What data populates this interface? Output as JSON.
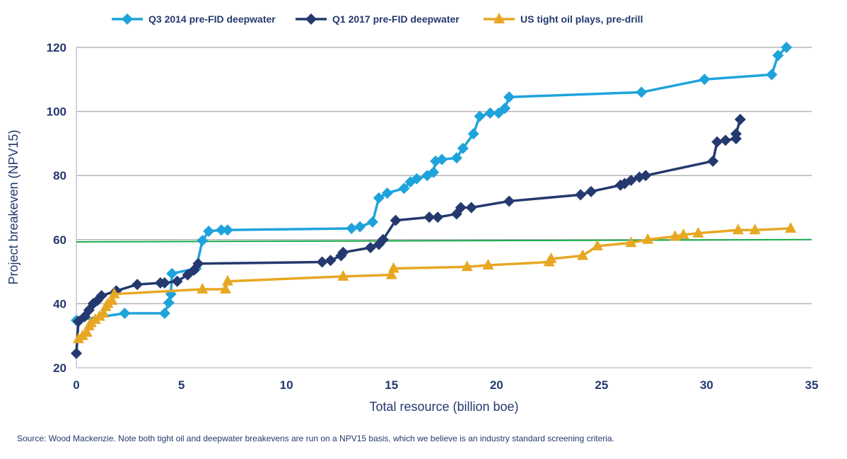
{
  "chart_data": {
    "type": "line",
    "title": "",
    "xlabel": "Total resource (billion boe)",
    "ylabel": "Project breakeven (NPV15)",
    "xlim": [
      0,
      35
    ],
    "ylim": [
      20,
      120
    ],
    "xticks": [
      "0",
      "5",
      "10",
      "15",
      "20",
      "25",
      "30",
      "35"
    ],
    "yticks": [
      "20",
      "40",
      "60",
      "80",
      "100",
      "120"
    ],
    "grid": "horizontal",
    "legend_position": "top",
    "series": [
      {
        "name": "Q3 2014 pre-FID deepwater",
        "color": "#1ea3dc",
        "marker": "diamond",
        "points": [
          [
            0,
            34.8
          ],
          [
            2.3,
            37
          ],
          [
            4.2,
            37
          ],
          [
            4.4,
            40.3
          ],
          [
            4.5,
            43
          ],
          [
            4.55,
            49.4
          ],
          [
            5.7,
            51
          ],
          [
            6.0,
            59.7
          ],
          [
            6.3,
            62.6
          ],
          [
            6.9,
            63
          ],
          [
            7.2,
            63
          ],
          [
            13.1,
            63.5
          ],
          [
            13.5,
            64
          ],
          [
            14.1,
            65.5
          ],
          [
            14.4,
            73
          ],
          [
            14.8,
            74.5
          ],
          [
            15.6,
            76
          ],
          [
            15.9,
            78
          ],
          [
            16.2,
            79
          ],
          [
            16.7,
            80
          ],
          [
            17.0,
            81
          ],
          [
            17.1,
            84.5
          ],
          [
            17.4,
            85
          ],
          [
            18.1,
            85.5
          ],
          [
            18.4,
            88.5
          ],
          [
            18.9,
            93
          ],
          [
            19.2,
            98.5
          ],
          [
            19.7,
            99.5
          ],
          [
            20.1,
            99.5
          ],
          [
            20.4,
            101
          ],
          [
            20.6,
            104.5
          ],
          [
            26.9,
            106
          ],
          [
            29.9,
            110
          ],
          [
            33.1,
            111.5
          ],
          [
            33.4,
            117.5
          ],
          [
            33.8,
            120
          ]
        ]
      },
      {
        "name": "Q1 2017 pre-FID deepwater",
        "color": "#24396e",
        "marker": "diamond",
        "points": [
          [
            0,
            24.5
          ],
          [
            0.1,
            34.5
          ],
          [
            0.4,
            36
          ],
          [
            0.6,
            38
          ],
          [
            0.8,
            40
          ],
          [
            1.0,
            41
          ],
          [
            1.2,
            42.5
          ],
          [
            1.9,
            44
          ],
          [
            2.9,
            46
          ],
          [
            4.0,
            46.5
          ],
          [
            4.2,
            46.5
          ],
          [
            4.8,
            47
          ],
          [
            5.3,
            49
          ],
          [
            5.6,
            50.5
          ],
          [
            5.8,
            52.5
          ],
          [
            11.7,
            53
          ],
          [
            12.1,
            53.5
          ],
          [
            12.6,
            55
          ],
          [
            12.7,
            56
          ],
          [
            14.0,
            57.5
          ],
          [
            14.4,
            58.5
          ],
          [
            14.6,
            60
          ],
          [
            15.2,
            66
          ],
          [
            16.8,
            67
          ],
          [
            17.2,
            67
          ],
          [
            18.1,
            68
          ],
          [
            18.3,
            70
          ],
          [
            18.8,
            70
          ],
          [
            20.6,
            72
          ],
          [
            24.0,
            74
          ],
          [
            24.5,
            75
          ],
          [
            25.9,
            77
          ],
          [
            26.1,
            77.5
          ],
          [
            26.4,
            78.5
          ],
          [
            26.8,
            79.5
          ],
          [
            27.1,
            80
          ],
          [
            30.3,
            84.5
          ],
          [
            30.5,
            90.5
          ],
          [
            30.9,
            91
          ],
          [
            31.4,
            91.5
          ],
          [
            31.4,
            93
          ],
          [
            31.6,
            97.5
          ]
        ]
      },
      {
        "name": "US tight oil plays, pre-drill",
        "color": "#e8a723",
        "marker": "triangle",
        "points": [
          [
            0.1,
            29
          ],
          [
            0.3,
            30
          ],
          [
            0.5,
            31
          ],
          [
            0.6,
            33
          ],
          [
            0.7,
            34
          ],
          [
            0.9,
            35
          ],
          [
            1.1,
            36
          ],
          [
            1.3,
            37
          ],
          [
            1.4,
            39
          ],
          [
            1.5,
            40
          ],
          [
            1.7,
            41
          ],
          [
            1.8,
            43
          ],
          [
            6.0,
            44.5
          ],
          [
            7.1,
            44.5
          ],
          [
            7.2,
            47
          ],
          [
            12.7,
            48.5
          ],
          [
            15.0,
            49
          ],
          [
            15.1,
            51
          ],
          [
            18.6,
            51.5
          ],
          [
            19.6,
            52
          ],
          [
            22.5,
            53
          ],
          [
            22.6,
            54
          ],
          [
            24.1,
            55
          ],
          [
            24.8,
            58
          ],
          [
            26.4,
            59
          ],
          [
            27.2,
            60
          ],
          [
            28.5,
            61
          ],
          [
            28.9,
            61.5
          ],
          [
            29.6,
            62
          ],
          [
            31.5,
            63
          ],
          [
            32.3,
            63
          ],
          [
            34.0,
            63.5
          ]
        ]
      }
    ],
    "reference_line": {
      "color": "#1aab4b",
      "points": [
        [
          0,
          59.3
        ],
        [
          35,
          60
        ]
      ]
    }
  },
  "source": "Source: Wood Mackenzie. Note both tight oil and deepwater breakevens are run on a NPV15 basis, which we believe is an industry standard screening criteria."
}
